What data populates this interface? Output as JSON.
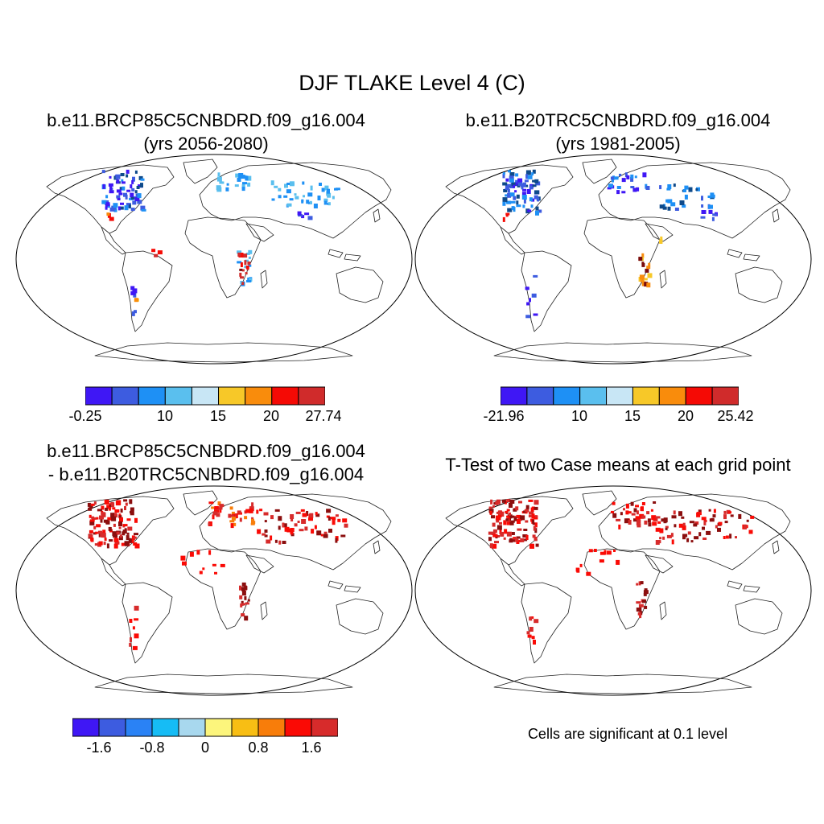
{
  "main_title": "DJF TLAKE Level 4 (C)",
  "panels": [
    {
      "id": "case1",
      "title_line1": "b.e11.BRCP85C5CNBDRD.f09_g16.004",
      "title_line2": "(yrs 2056-2080)"
    },
    {
      "id": "case2",
      "title_line1": "b.e11.B20TRC5CNBDRD.f09_g16.004",
      "title_line2": "(yrs 1981-2005)"
    },
    {
      "id": "diff",
      "title_line1": "b.e11.BRCP85C5CNBDRD.f09_g16.004",
      "title_line2": "- b.e11.B20TRC5CNBDRD.f09_g16.004"
    },
    {
      "id": "ttest",
      "title_line1": "T-Test of two Case means at each grid point",
      "title_line2": ""
    }
  ],
  "colorbars": {
    "case1": {
      "colors": [
        "#3f17f5",
        "#3d5ce0",
        "#1e90f5",
        "#5abfee",
        "#c8e6f5",
        "#f7c828",
        "#f98c0c",
        "#f50a05",
        "#d02b2b"
      ],
      "labels": [
        "-0.25",
        "10",
        "15",
        "20",
        "27.74"
      ]
    },
    "case2": {
      "colors": [
        "#3f17f5",
        "#3d5ce0",
        "#1e90f5",
        "#5abfee",
        "#c8e6f5",
        "#f7c828",
        "#f98c0c",
        "#f50a05",
        "#d02b2b"
      ],
      "labels": [
        "-21.96",
        "10",
        "15",
        "20",
        "25.42"
      ]
    },
    "diff": {
      "colors": [
        "#3f17f5",
        "#3d5ce0",
        "#2a82f5",
        "#16bcf5",
        "#a8d8ee",
        "#fcf57c",
        "#f8be14",
        "#f87d0a",
        "#fa0a05",
        "#d72b2b"
      ],
      "labels": [
        "-1.6",
        "-0.8",
        "0",
        "0.8",
        "1.6"
      ]
    }
  },
  "significance_note": "Cells are significant at 0.1 level"
}
